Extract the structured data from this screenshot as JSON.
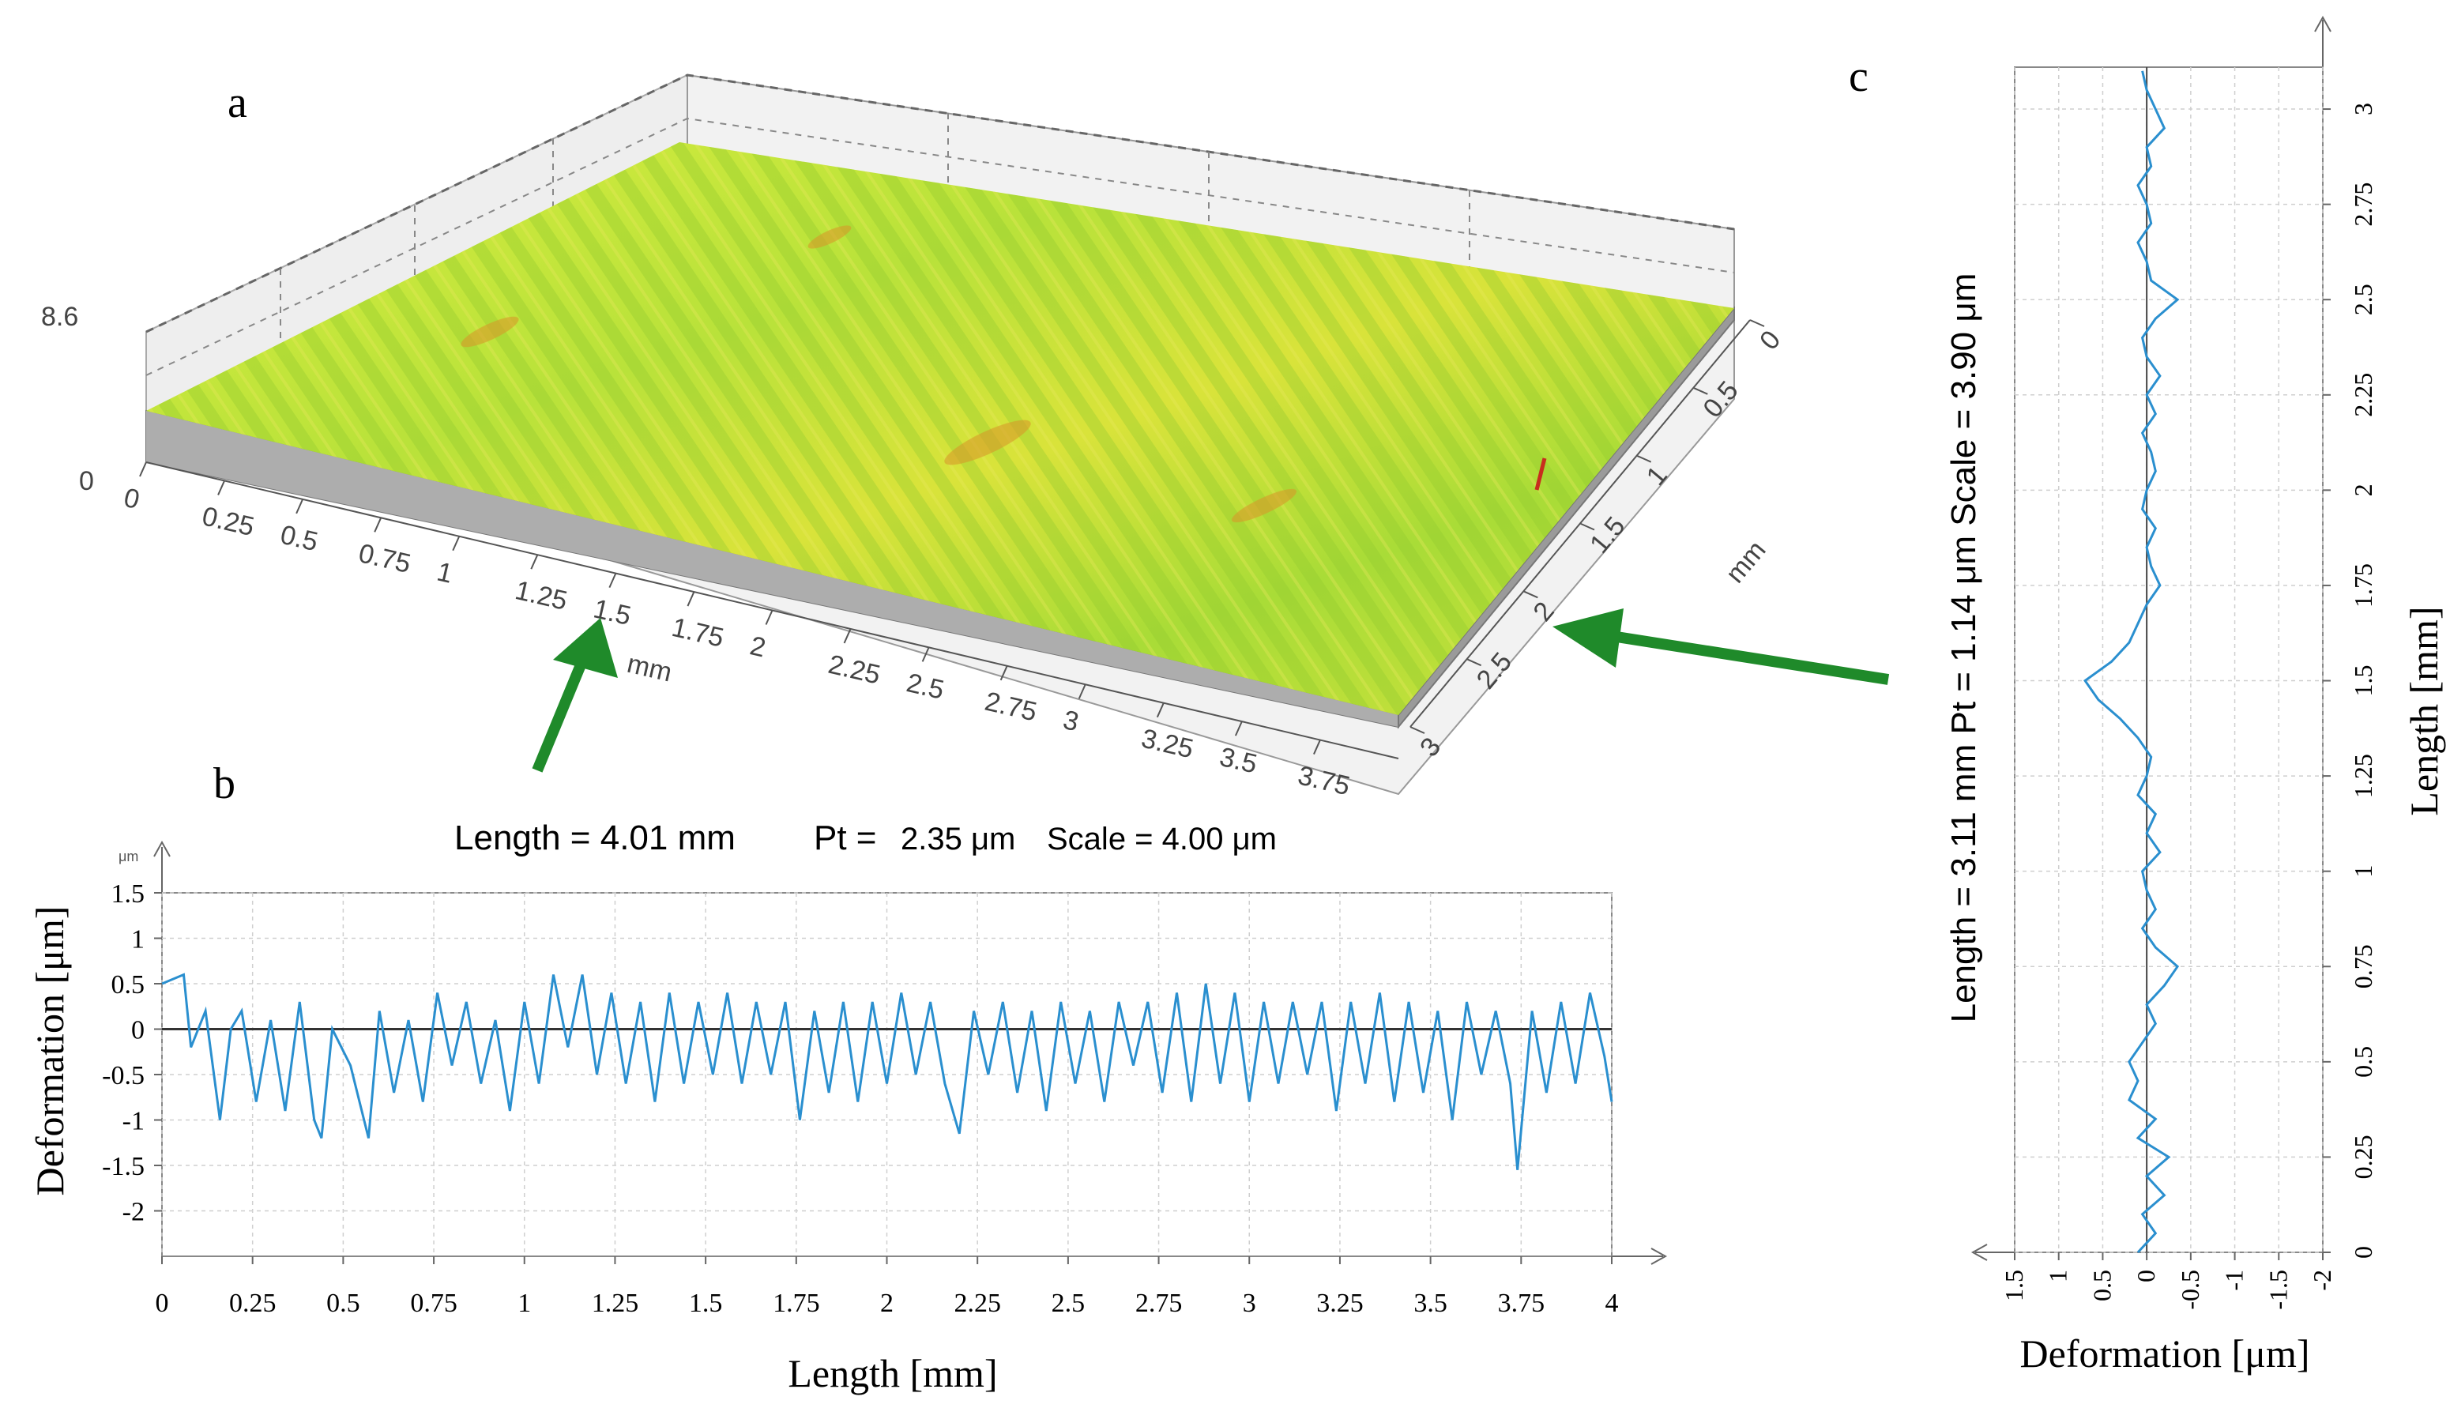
{
  "colors": {
    "trace": "#2a8fcf",
    "surface_top": "#c9e83a",
    "surface_side": "#a9a9a9",
    "arrow": "#1f8a2a",
    "grid": "#c8c8c8"
  },
  "panel_labels": {
    "a": "a",
    "b": "b",
    "c": "c"
  },
  "chart_data": [
    {
      "id": "a",
      "type": "surface3d",
      "z_top_label": "8.6",
      "z_bottom_label": "0",
      "x_ticks": [
        "0",
        "0.25",
        "0.5",
        "0.75",
        "1",
        "1.25",
        "1.5",
        "1.75",
        "2",
        "2.25",
        "2.5",
        "2.75",
        "3",
        "3.25",
        "3.5",
        "3.75"
      ],
      "x_unit": "mm",
      "y_ticks": [
        "0",
        "0.5",
        "1",
        "1.5",
        "2",
        "2.5",
        "3"
      ],
      "y_unit": "mm"
    },
    {
      "id": "b",
      "type": "line",
      "header": {
        "length": "Length = 4.01 mm",
        "pt": "Pt = ",
        "pt_value": "2.35 μm",
        "scale": "Scale = 4.00 μm"
      },
      "unit_label": "μm",
      "xlabel": "Length [mm]",
      "ylabel": "Deformation  [μm]",
      "xlim": [
        0,
        4
      ],
      "ylim": [
        -2.5,
        1.5
      ],
      "x_ticks": [
        "0",
        "0.25",
        "0.5",
        "0.75",
        "1",
        "1.25",
        "1.5",
        "1.75",
        "2",
        "2.25",
        "2.5",
        "2.75",
        "3",
        "3.25",
        "3.5",
        "3.75",
        "4"
      ],
      "y_ticks": [
        "1.5",
        "1",
        "0.5",
        "0",
        "-0.5",
        "-1",
        "-1.5",
        "-2"
      ],
      "y_tick_values": [
        1.5,
        1,
        0.5,
        0,
        -0.5,
        -1,
        -1.5,
        -2
      ],
      "x": [
        0,
        0.06,
        0.08,
        0.12,
        0.16,
        0.19,
        0.22,
        0.26,
        0.3,
        0.34,
        0.38,
        0.42,
        0.44,
        0.47,
        0.52,
        0.57,
        0.6,
        0.64,
        0.68,
        0.72,
        0.76,
        0.8,
        0.84,
        0.88,
        0.92,
        0.96,
        1.0,
        1.04,
        1.08,
        1.12,
        1.16,
        1.2,
        1.24,
        1.28,
        1.32,
        1.36,
        1.4,
        1.44,
        1.48,
        1.52,
        1.56,
        1.6,
        1.64,
        1.68,
        1.72,
        1.76,
        1.8,
        1.84,
        1.88,
        1.92,
        1.96,
        2.0,
        2.04,
        2.08,
        2.12,
        2.16,
        2.2,
        2.24,
        2.28,
        2.32,
        2.36,
        2.4,
        2.44,
        2.48,
        2.52,
        2.56,
        2.6,
        2.64,
        2.68,
        2.72,
        2.76,
        2.8,
        2.84,
        2.88,
        2.92,
        2.96,
        3.0,
        3.04,
        3.08,
        3.12,
        3.16,
        3.2,
        3.24,
        3.28,
        3.32,
        3.36,
        3.4,
        3.44,
        3.48,
        3.52,
        3.56,
        3.6,
        3.64,
        3.68,
        3.72,
        3.74,
        3.78,
        3.82,
        3.86,
        3.9,
        3.94,
        3.98,
        4.0
      ],
      "y": [
        0.5,
        0.6,
        -0.2,
        0.2,
        -1.0,
        0.0,
        0.2,
        -0.8,
        0.1,
        -0.9,
        0.3,
        -1.0,
        -1.2,
        0.0,
        -0.4,
        -1.2,
        0.2,
        -0.7,
        0.1,
        -0.8,
        0.4,
        -0.4,
        0.3,
        -0.6,
        0.1,
        -0.9,
        0.3,
        -0.6,
        0.6,
        -0.2,
        0.6,
        -0.5,
        0.4,
        -0.6,
        0.3,
        -0.8,
        0.4,
        -0.6,
        0.3,
        -0.5,
        0.4,
        -0.6,
        0.3,
        -0.5,
        0.3,
        -1.0,
        0.2,
        -0.7,
        0.3,
        -0.8,
        0.3,
        -0.6,
        0.4,
        -0.5,
        0.3,
        -0.6,
        -1.15,
        0.2,
        -0.5,
        0.3,
        -0.7,
        0.2,
        -0.9,
        0.3,
        -0.6,
        0.2,
        -0.8,
        0.3,
        -0.4,
        0.3,
        -0.7,
        0.4,
        -0.8,
        0.5,
        -0.6,
        0.4,
        -0.8,
        0.3,
        -0.6,
        0.3,
        -0.5,
        0.3,
        -0.9,
        0.3,
        -0.6,
        0.4,
        -0.8,
        0.3,
        -0.7,
        0.2,
        -1.0,
        0.3,
        -0.5,
        0.2,
        -0.6,
        -1.55,
        0.2,
        -0.7,
        0.3,
        -0.6,
        0.4,
        -0.3,
        -0.8
      ]
    },
    {
      "id": "c",
      "type": "line",
      "orientation": "vertical",
      "header": {
        "length": "Length = 3.11 mm",
        "pt": "Pt = 1.14 μm",
        "scale": "Scale = 3.90 μm"
      },
      "xlabel": "Deformation  [μm]",
      "ylabel": "Length [mm]",
      "deformation_lim": [
        1.5,
        -2
      ],
      "length_lim": [
        0,
        3.11
      ],
      "deformation_ticks": [
        "1.5",
        "1",
        "0.5",
        "0",
        "-0.5",
        "-1",
        "-1.5",
        "-2"
      ],
      "deformation_tick_values": [
        1.5,
        1,
        0.5,
        0,
        -0.5,
        -1,
        -1.5,
        -2
      ],
      "length_ticks": [
        "0",
        "0.25",
        "0.5",
        "0.75",
        "1",
        "1.25",
        "1.5",
        "1.75",
        "2",
        "2.25",
        "2.5",
        "2.75",
        "3"
      ],
      "length_tick_values": [
        0,
        0.25,
        0.5,
        0.75,
        1,
        1.25,
        1.5,
        1.75,
        2,
        2.25,
        2.5,
        2.75,
        3
      ],
      "length": [
        0,
        0.05,
        0.1,
        0.15,
        0.2,
        0.25,
        0.3,
        0.35,
        0.4,
        0.45,
        0.5,
        0.55,
        0.6,
        0.65,
        0.7,
        0.75,
        0.8,
        0.85,
        0.9,
        0.95,
        1.0,
        1.05,
        1.1,
        1.15,
        1.2,
        1.25,
        1.3,
        1.35,
        1.4,
        1.45,
        1.5,
        1.55,
        1.6,
        1.65,
        1.7,
        1.75,
        1.8,
        1.85,
        1.9,
        1.95,
        2.0,
        2.05,
        2.1,
        2.15,
        2.2,
        2.25,
        2.3,
        2.35,
        2.4,
        2.45,
        2.5,
        2.55,
        2.6,
        2.65,
        2.7,
        2.75,
        2.8,
        2.85,
        2.9,
        2.95,
        3.0,
        3.05,
        3.1
      ],
      "deformation": [
        0.1,
        -0.1,
        0.05,
        -0.2,
        0.0,
        -0.25,
        0.1,
        -0.1,
        0.2,
        0.1,
        0.2,
        0.05,
        -0.1,
        0.0,
        -0.2,
        -0.35,
        -0.1,
        0.05,
        -0.1,
        0.0,
        0.05,
        -0.15,
        0.0,
        -0.1,
        0.1,
        0.0,
        -0.05,
        0.1,
        0.3,
        0.55,
        0.7,
        0.4,
        0.2,
        0.1,
        0.0,
        -0.15,
        -0.05,
        0.0,
        -0.1,
        0.05,
        0.0,
        -0.1,
        -0.05,
        0.05,
        -0.1,
        0.0,
        -0.15,
        0.0,
        0.05,
        -0.1,
        -0.35,
        -0.05,
        0.0,
        0.1,
        -0.05,
        0.0,
        0.1,
        -0.05,
        0.0,
        -0.2,
        -0.1,
        0.0,
        0.05
      ]
    }
  ]
}
